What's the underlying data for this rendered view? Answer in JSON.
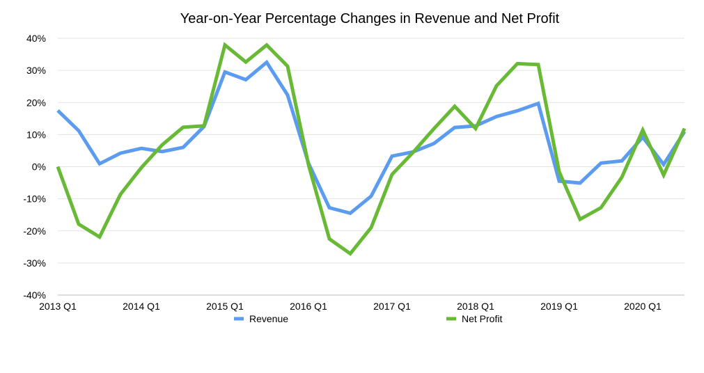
{
  "chart_data": {
    "type": "line",
    "title": "Year-on-Year Percentage Changes in Revenue and Net Profit",
    "xlabel": "",
    "ylabel": "",
    "ylim": [
      -40,
      40
    ],
    "y_ticks": [
      -40,
      -30,
      -20,
      -10,
      0,
      10,
      20,
      30,
      40
    ],
    "y_tick_format": "percent",
    "x": [
      "2013 Q1",
      "2013 Q2",
      "2013 Q3",
      "2013 Q4",
      "2014 Q1",
      "2014 Q2",
      "2014 Q3",
      "2014 Q4",
      "2015 Q1",
      "2015 Q2",
      "2015 Q3",
      "2015 Q4",
      "2016 Q1",
      "2016 Q2",
      "2016 Q3",
      "2016 Q4",
      "2017 Q1",
      "2017 Q2",
      "2017 Q3",
      "2017 Q4",
      "2018 Q1",
      "2018 Q2",
      "2018 Q3",
      "2018 Q4",
      "2019 Q1",
      "2019 Q2",
      "2019 Q3",
      "2019 Q4",
      "2020 Q1",
      "2020 Q2",
      "2020 Q3"
    ],
    "x_tick_labels": [
      "2013 Q1",
      "2014 Q1",
      "2015 Q1",
      "2016 Q1",
      "2017 Q1",
      "2018 Q1",
      "2019 Q1",
      "2020 Q1"
    ],
    "grid": true,
    "legend_position": "bottom",
    "series": [
      {
        "name": "Revenue",
        "color": "#5b9bf0",
        "values": [
          17.5,
          11.2,
          0.9,
          4.2,
          5.7,
          4.7,
          6.0,
          12.5,
          29.5,
          27.1,
          32.5,
          22.3,
          1.1,
          -12.8,
          -14.5,
          -9.2,
          3.3,
          4.6,
          7.2,
          12.2,
          12.7,
          15.6,
          17.4,
          19.7,
          -4.5,
          -5.1,
          1.1,
          1.8,
          9.2,
          0.7,
          10.9
        ]
      },
      {
        "name": "Net Profit",
        "color": "#68b936",
        "values": [
          0.0,
          -17.9,
          -21.9,
          -8.6,
          -0.3,
          6.8,
          12.3,
          12.7,
          37.9,
          32.6,
          37.9,
          31.3,
          0.6,
          -22.5,
          -27.1,
          -19.0,
          -2.4,
          4.4,
          11.8,
          18.8,
          11.9,
          25.2,
          32.1,
          31.8,
          -1.6,
          -16.4,
          -12.8,
          -3.3,
          11.4,
          -2.6,
          11.9
        ]
      }
    ]
  }
}
